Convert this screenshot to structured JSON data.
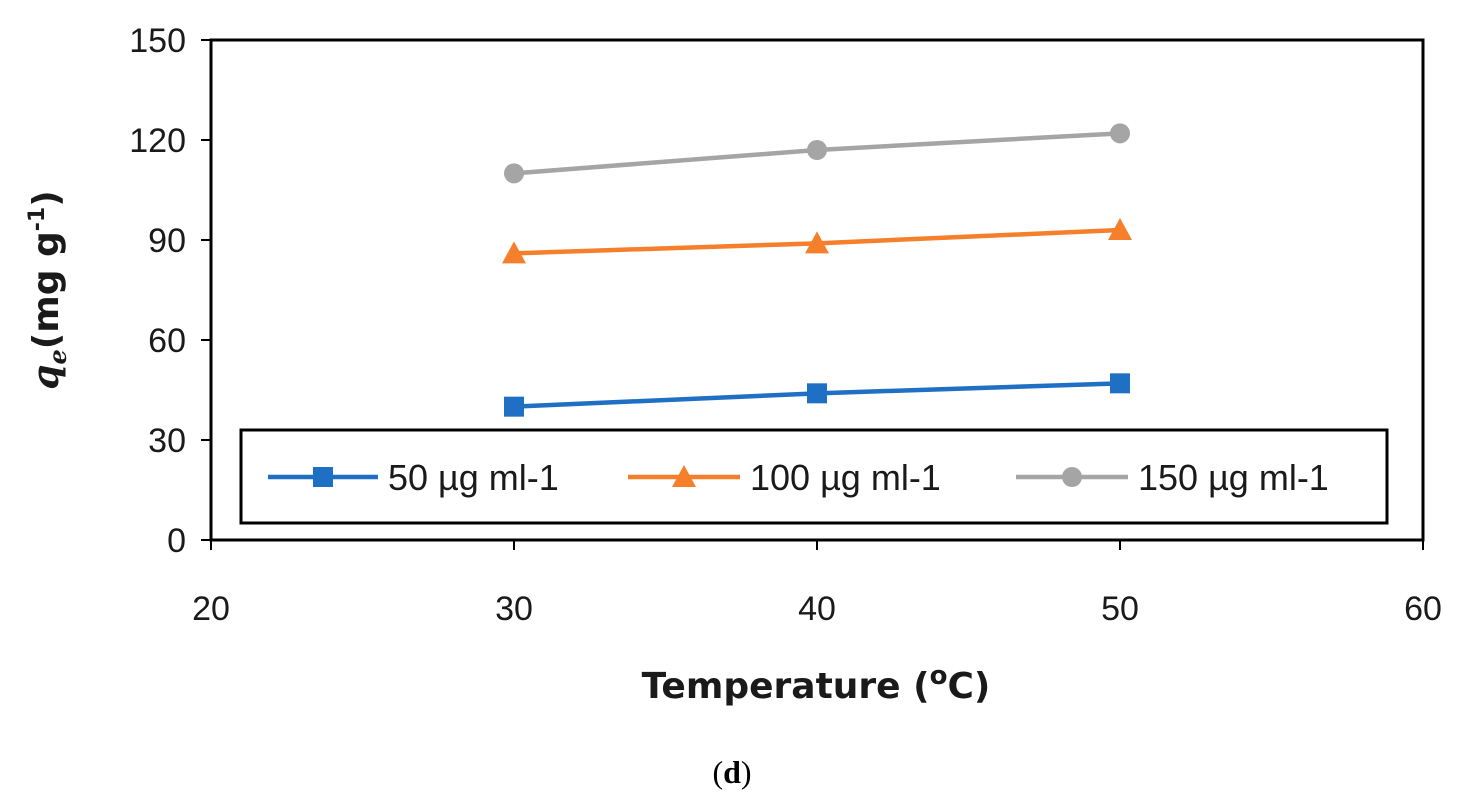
{
  "chart_data": {
    "type": "line",
    "title": "",
    "xlabel": "Temperature (",
    "xlabel_sup": "o",
    "xlabel_tail": "C)",
    "ylabel_var": "q",
    "ylabel_sub": "e",
    "ylabel_units": "(mg g",
    "ylabel_sup": "-1",
    "ylabel_close": ")",
    "x": [
      30,
      40,
      50
    ],
    "xlim": [
      20,
      60
    ],
    "ylim": [
      0,
      150
    ],
    "xticks": [
      20,
      30,
      40,
      50,
      60
    ],
    "yticks": [
      0,
      30,
      60,
      90,
      120,
      150
    ],
    "grid": false,
    "legend_position": "bottom",
    "series": [
      {
        "name": "50 µg ml-1",
        "values": [
          40,
          44,
          47
        ],
        "color": "#1f6fc5",
        "marker": "square"
      },
      {
        "name": "100 µg ml-1",
        "values": [
          86,
          89,
          93
        ],
        "color": "#f57f2b",
        "marker": "triangle"
      },
      {
        "name": "150 µg ml-1",
        "values": [
          110,
          117,
          122
        ],
        "color": "#a5a5a5",
        "marker": "circle"
      }
    ]
  },
  "caption": {
    "open": "(",
    "letter": "d",
    "close": ")"
  }
}
